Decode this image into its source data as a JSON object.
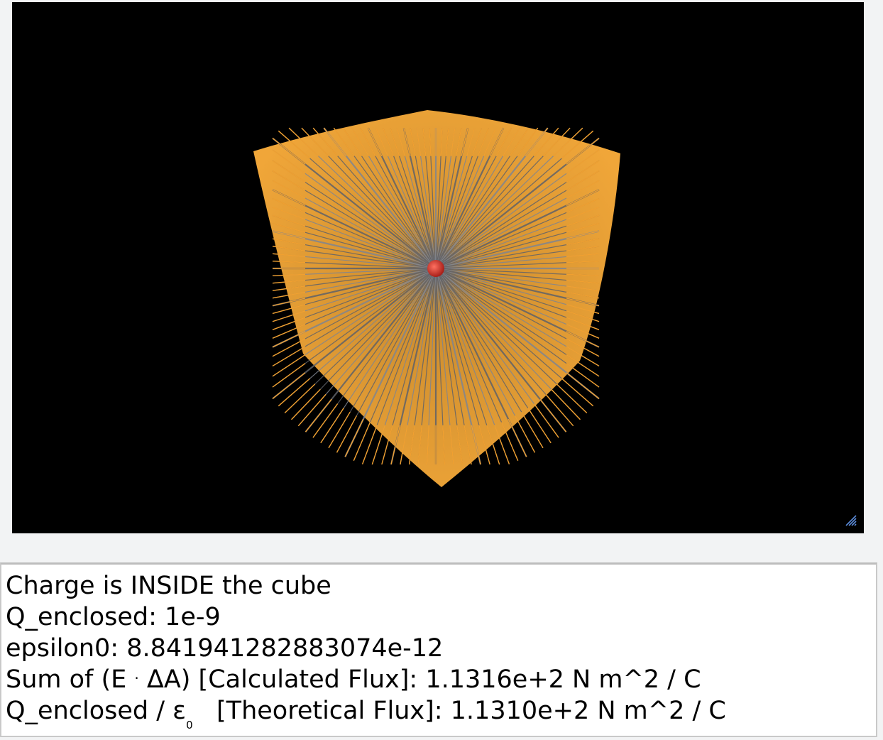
{
  "scene": {
    "background": "#000000",
    "cube_color": "#f0a030",
    "arrow_color": "#7f8590",
    "charge_color": "#d8382e",
    "resize_icon": "resize-grip-icon"
  },
  "output": {
    "status": "Charge is INSIDE the cube",
    "q_enclosed": "Q_enclosed: 1e-9",
    "epsilon0": "epsilon0: 8.841941282883074e-12",
    "sum_prefix": "Sum of (E",
    "sum_dot": "·",
    "sum_suffix": "ΔA) [Calculated Flux]: 1.1316e+2 N m^2 / C",
    "theory_prefix": "Q_enclosed / ε",
    "theory_sub": "0",
    "theory_suffix": "[Theoretical Flux]: 1.1310e+2 N m^2 / C"
  }
}
